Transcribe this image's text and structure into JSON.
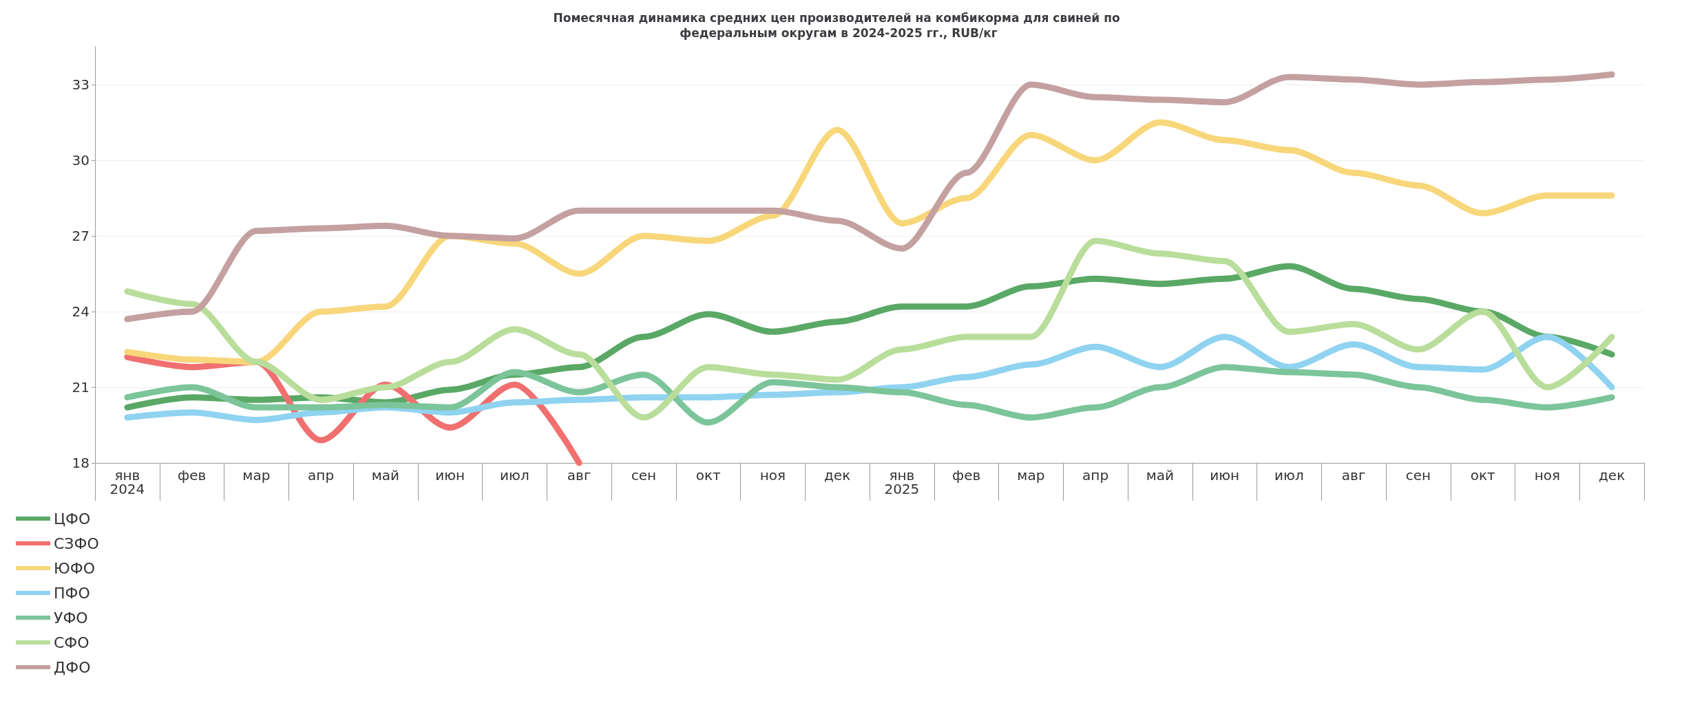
{
  "chart_data": {
    "type": "line",
    "title": "Помесячная динамика средних цен производителей на комбикорма для свиней по федеральным округам в 2024-2025 гг., RUB/кг",
    "categories": [
      "янв\n2024",
      "фев",
      "мар",
      "апр",
      "май",
      "июн",
      "июл",
      "авг",
      "сен",
      "окт",
      "ноя",
      "дек",
      "янв\n2025",
      "фев",
      "мар",
      "апр",
      "май",
      "июн",
      "июл",
      "авг",
      "сен",
      "окт",
      "ноя",
      "дек"
    ],
    "series": [
      {
        "name": "ЦФО",
        "color": "#5aa866",
        "values": [
          20.2,
          20.6,
          20.5,
          20.6,
          20.4,
          20.9,
          21.5,
          21.8,
          23.0,
          23.9,
          23.2,
          23.6,
          24.2,
          24.2,
          25.0,
          25.3,
          25.1,
          25.3,
          25.8,
          24.9,
          24.5,
          24.0,
          23.0,
          22.3
        ]
      },
      {
        "name": "СЗФО",
        "color": "#f07070",
        "values": [
          22.2,
          21.8,
          22.0,
          18.9,
          21.1,
          19.4,
          21.1,
          18.0,
          null,
          null,
          null,
          null,
          null,
          null,
          null,
          null,
          null,
          null,
          null,
          null,
          null,
          null,
          null,
          null
        ]
      },
      {
        "name": "ЮФО",
        "color": "#f8d67a",
        "values": [
          22.4,
          22.1,
          22.0,
          24.0,
          24.2,
          27.0,
          26.7,
          25.5,
          27.0,
          26.8,
          27.8,
          31.2,
          27.5,
          28.5,
          31.0,
          30.0,
          31.5,
          30.8,
          30.4,
          29.5,
          29.0,
          27.9,
          28.6,
          28.6
        ]
      },
      {
        "name": "ПФО",
        "color": "#8fd3f0",
        "values": [
          19.8,
          20.0,
          19.7,
          20.0,
          20.2,
          20.0,
          20.4,
          20.5,
          20.6,
          20.6,
          20.7,
          20.8,
          21.0,
          21.4,
          21.9,
          22.6,
          21.8,
          23.0,
          21.8,
          22.7,
          21.8,
          21.7,
          23.0,
          21.0
        ]
      },
      {
        "name": "УФО",
        "color": "#7cc49a",
        "values": [
          20.6,
          21.0,
          20.2,
          20.2,
          20.3,
          20.2,
          21.6,
          20.8,
          21.5,
          19.6,
          21.2,
          21.0,
          20.8,
          20.3,
          19.8,
          20.2,
          21.0,
          21.8,
          21.6,
          21.5,
          21.0,
          20.5,
          20.2,
          20.6
        ]
      },
      {
        "name": "СФО",
        "color": "#b9dd9a",
        "values": [
          24.8,
          24.3,
          22.0,
          20.5,
          21.0,
          22.0,
          23.3,
          22.3,
          19.8,
          21.8,
          21.5,
          21.3,
          22.5,
          23.0,
          23.0,
          26.8,
          26.3,
          26.0,
          23.2,
          23.5,
          22.5,
          24.0,
          21.0,
          23.0
        ]
      },
      {
        "name": "ДФО",
        "color": "#c4a0a0",
        "values": [
          23.7,
          24.0,
          27.2,
          27.3,
          27.4,
          27.0,
          26.9,
          28.0,
          28.0,
          28.0,
          28.0,
          27.6,
          26.5,
          29.5,
          33.0,
          32.5,
          32.4,
          32.3,
          33.3,
          33.2,
          33.0,
          33.1,
          33.2,
          33.4
        ]
      }
    ],
    "ylim": [
      18,
      34.5
    ],
    "yticks": [
      18,
      21,
      24,
      27,
      30,
      33
    ],
    "grid": "y",
    "legend": "bottom left",
    "marker": "none",
    "line_style": "solid"
  }
}
